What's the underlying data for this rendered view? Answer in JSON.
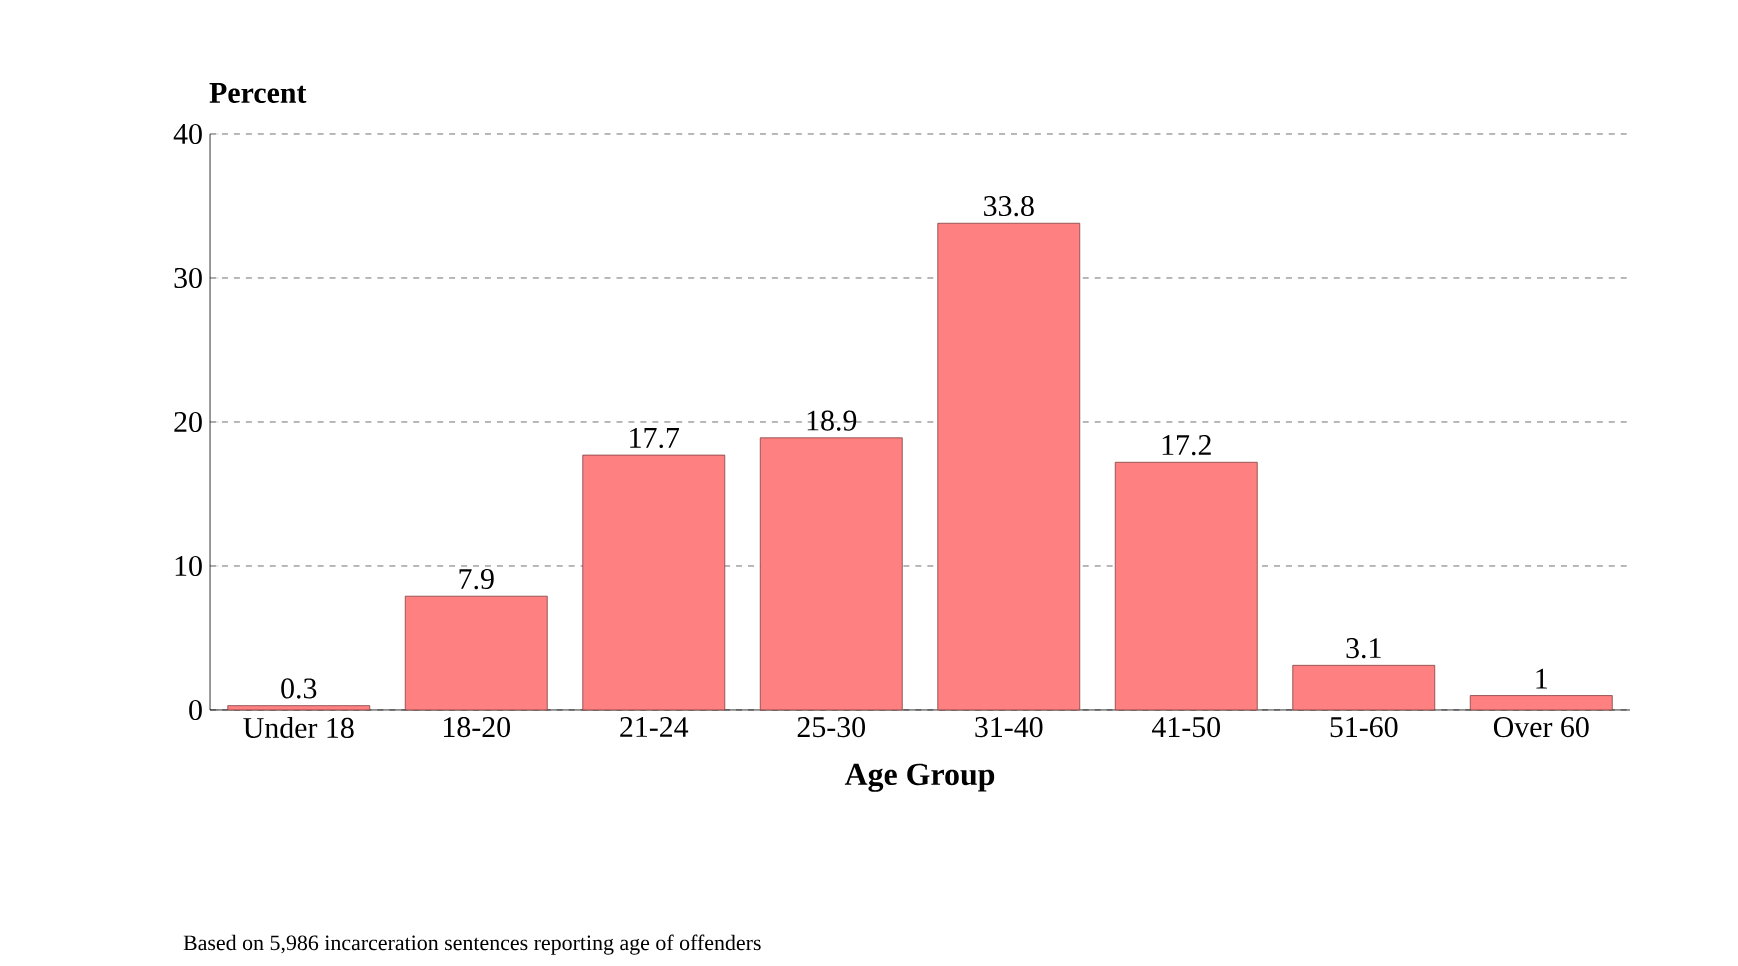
{
  "chart_data": {
    "type": "bar",
    "ylabel": "Percent",
    "xlabel": "Age Group",
    "categories": [
      "Under 18",
      "18-20",
      "21-24",
      "25-30",
      "31-40",
      "41-50",
      "51-60",
      "Over 60"
    ],
    "values": [
      0.3,
      7.9,
      17.7,
      18.9,
      33.8,
      17.2,
      3.1,
      1
    ],
    "color": "#ff8080",
    "ylim": [
      0,
      40
    ],
    "yticks": [
      0,
      10,
      20,
      30,
      40
    ],
    "grid": "y",
    "data_labels": true,
    "annotations": [
      "Based on 5,986 incarceration sentences reporting age of offenders"
    ]
  }
}
